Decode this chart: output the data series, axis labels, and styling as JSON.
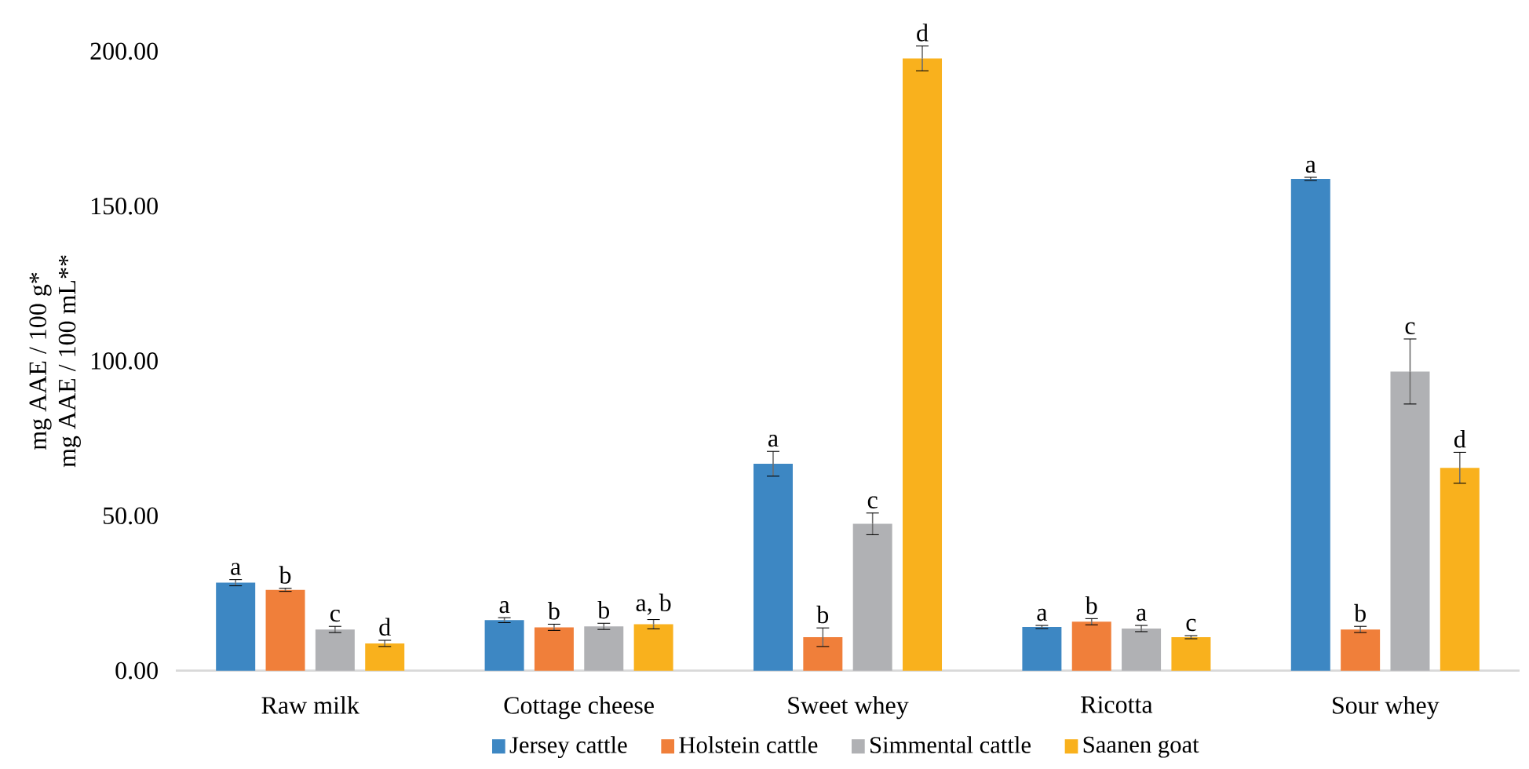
{
  "chart_data": {
    "type": "bar",
    "categories": [
      "Raw milk",
      "Cottage cheese",
      "Sweet whey",
      "Ricotta",
      "Sour whey"
    ],
    "ylabel": [
      "mg AAE / 100 g*",
      "mg AAE / 100 mL**"
    ],
    "ylim": [
      0,
      200
    ],
    "yticks": [
      {
        "value": 0,
        "label": "0.00"
      },
      {
        "value": 50,
        "label": "50.00"
      },
      {
        "value": 100,
        "label": "100.00"
      },
      {
        "value": 150,
        "label": "150.00"
      },
      {
        "value": 200,
        "label": "200.00"
      }
    ],
    "grid": false,
    "legend": "bottom",
    "series": [
      {
        "name": "Jersey cattle",
        "color": "#3d87c3",
        "values": [
          28.4,
          16.3,
          66.8,
          14.1,
          158.8
        ],
        "errors": [
          1,
          0.8,
          4,
          0.5,
          0.5
        ],
        "value_labels": [
          "a",
          "a",
          "a",
          "a",
          "a"
        ]
      },
      {
        "name": "Holstein cattle",
        "color": "#f07f3a",
        "values": [
          26.1,
          14.0,
          10.8,
          15.8,
          13.3
        ],
        "errors": [
          0.5,
          1,
          3,
          1,
          1
        ],
        "value_labels": [
          "b",
          "b",
          "b",
          "b",
          "b"
        ]
      },
      {
        "name": "Simmental cattle",
        "color": "#b0b1b4",
        "values": [
          13.3,
          14.3,
          47.4,
          13.6,
          96.6
        ],
        "errors": [
          1,
          1,
          3.5,
          1,
          10.5
        ],
        "value_labels": [
          "c",
          "b",
          "c",
          "a",
          "c"
        ]
      },
      {
        "name": "Saanen goat",
        "color": "#f9b11d",
        "values": [
          8.8,
          15.0,
          197.7,
          10.8,
          65.5
        ],
        "errors": [
          1,
          1.5,
          4,
          0.5,
          5
        ],
        "value_labels": [
          "d",
          "a, b",
          "d",
          "c",
          "d"
        ]
      }
    ]
  }
}
